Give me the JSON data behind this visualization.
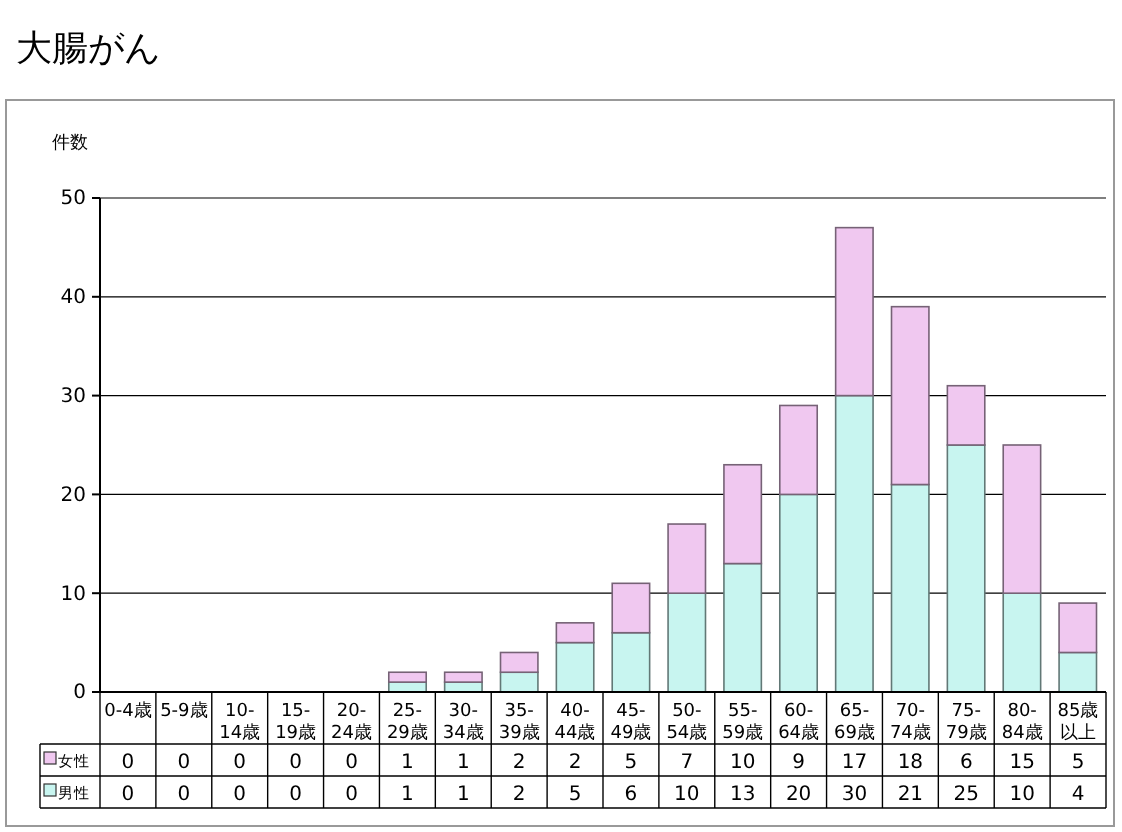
{
  "chart_data": {
    "type": "bar",
    "title": "大腸がん",
    "ylabel": "件数",
    "stacked": true,
    "categories": [
      "0-4歳",
      "5-9歳",
      "10-14歳",
      "15-19歳",
      "20-24歳",
      "25-29歳",
      "30-34歳",
      "35-39歳",
      "40-44歳",
      "45-49歳",
      "50-54歳",
      "55-59歳",
      "60-64歳",
      "65-69歳",
      "70-74歳",
      "75-79歳",
      "80-84歳",
      "85歳以上"
    ],
    "series": [
      {
        "name": "男性",
        "color": "#c8f5f0",
        "values": [
          0,
          0,
          0,
          0,
          0,
          1,
          1,
          2,
          5,
          6,
          10,
          13,
          20,
          30,
          21,
          25,
          10,
          4
        ]
      },
      {
        "name": "女性",
        "color": "#f0c8f0",
        "values": [
          0,
          0,
          0,
          0,
          0,
          1,
          1,
          2,
          2,
          5,
          7,
          10,
          9,
          17,
          18,
          6,
          15,
          5
        ]
      }
    ],
    "ylim": [
      0,
      50
    ],
    "yticks": [
      0,
      10,
      20,
      30,
      40,
      50
    ],
    "grid": "y",
    "legend": "bottom",
    "data_labels": true
  }
}
